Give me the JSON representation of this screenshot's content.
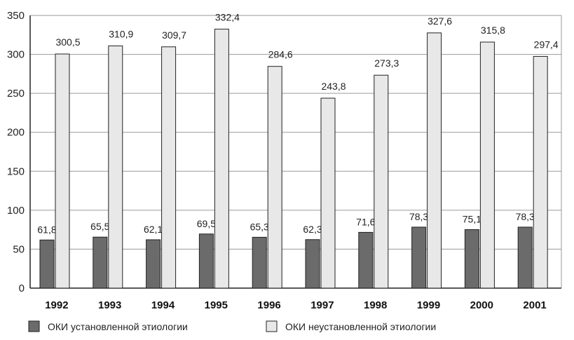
{
  "chart_data": {
    "type": "bar",
    "categories": [
      "1992",
      "1993",
      "1994",
      "1995",
      "1996",
      "1997",
      "1998",
      "1999",
      "2000",
      "2001"
    ],
    "series": [
      {
        "name": "ОКИ установленной этиологии",
        "values": [
          61.8,
          65.5,
          62.1,
          69.5,
          65.3,
          62.3,
          71.6,
          78.3,
          75.1,
          78.3
        ],
        "labels": [
          "61,8",
          "65,5",
          "62,1",
          "69,5",
          "65,3",
          "62,3",
          "71,6",
          "78,3",
          "75,1",
          "78,3"
        ],
        "color": "#6b6b6b"
      },
      {
        "name": "ОКИ неустановленной этиологии",
        "values": [
          300.5,
          310.9,
          309.7,
          332.4,
          284.6,
          243.8,
          273.3,
          327.6,
          315.8,
          297.4
        ],
        "labels": [
          "300,5",
          "310,9",
          "309,7",
          "332,4",
          "284,6",
          "243,8",
          "273,3",
          "327,6",
          "315,8",
          "297,4"
        ],
        "color": "#e8e8e8"
      }
    ],
    "ylim": [
      0,
      350
    ],
    "yticks": [
      "0",
      "50",
      "100",
      "150",
      "200",
      "250",
      "300",
      "350"
    ],
    "title": "",
    "xlabel": "",
    "ylabel": "",
    "grid": true,
    "legend_position": "bottom-left"
  }
}
